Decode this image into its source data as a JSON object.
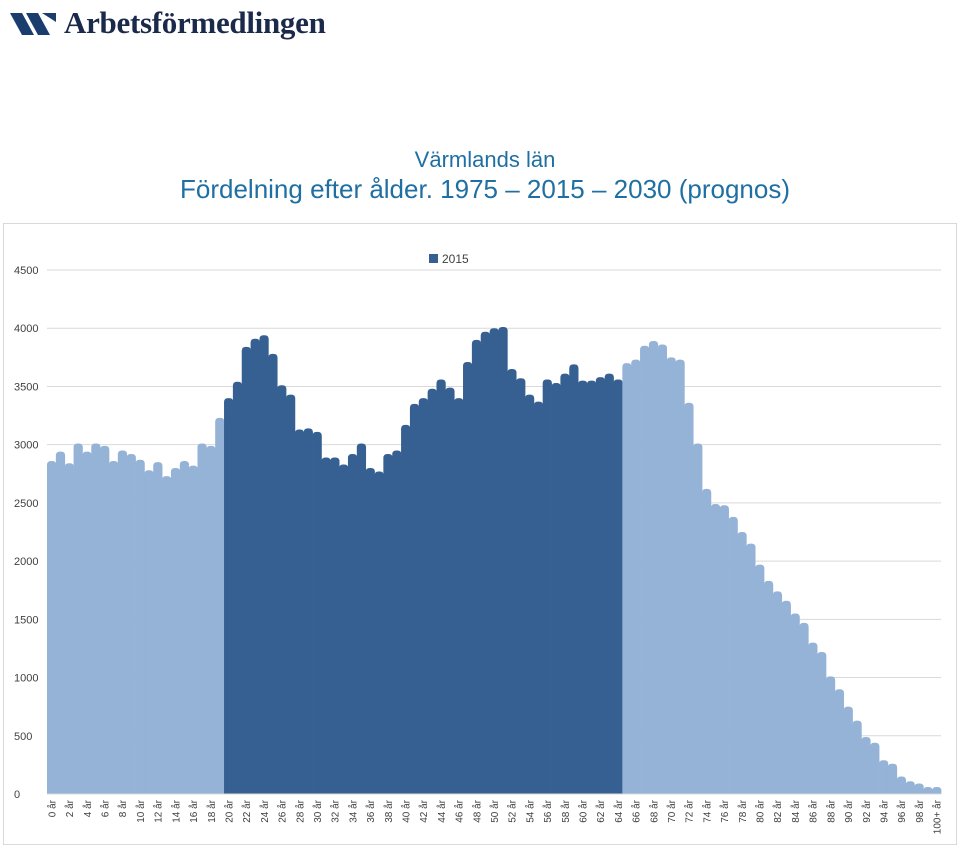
{
  "header": {
    "logo_text": "Arbetsförmedlingen",
    "title_line1": "Värmlands län",
    "title_line2": "Fördelning efter ålder. 1975 – 2015 – 2030 (prognos)"
  },
  "colors": {
    "title": "#1f6fa3",
    "bar_light": "#95b3d7",
    "bar_dark": "#376092",
    "gridline": "#d9d9d9",
    "axis_text": "#404040",
    "logo_mark": "#1b3d6e"
  },
  "chart_data": {
    "type": "bar",
    "title": "",
    "xlabel": "",
    "ylabel": "",
    "ylim": [
      0,
      4500
    ],
    "yticks": [
      0,
      500,
      1000,
      1500,
      2000,
      2500,
      3000,
      3500,
      4000,
      4500
    ],
    "grid": true,
    "legend_position": "top",
    "highlight_age_range": [
      20,
      64
    ],
    "categories": [
      "0 år",
      "1 år",
      "2 år",
      "3 år",
      "4 år",
      "5 år",
      "6 år",
      "7 år",
      "8 år",
      "9 år",
      "10 år",
      "11 år",
      "12 år",
      "13 år",
      "14 år",
      "15 år",
      "16 år",
      "17 år",
      "18 år",
      "19 år",
      "20 år",
      "21 år",
      "22 år",
      "23 år",
      "24 år",
      "25 år",
      "26 år",
      "27 år",
      "28 år",
      "29 år",
      "30 år",
      "31 år",
      "32 år",
      "33 år",
      "34 år",
      "35 år",
      "36 år",
      "37 år",
      "38 år",
      "39 år",
      "40 år",
      "41 år",
      "42 år",
      "43 år",
      "44 år",
      "45 år",
      "46 år",
      "47 år",
      "48 år",
      "49 år",
      "50 år",
      "51 år",
      "52 år",
      "53 år",
      "54 år",
      "55 år",
      "56 år",
      "57 år",
      "58 år",
      "59 år",
      "60 år",
      "61 år",
      "62 år",
      "63 år",
      "64 år",
      "65 år",
      "66 år",
      "67 år",
      "68 år",
      "69 år",
      "70 år",
      "71 år",
      "72 år",
      "73 år",
      "74 år",
      "75 år",
      "76 år",
      "77 år",
      "78 år",
      "79 år",
      "80 år",
      "81 år",
      "82 år",
      "83 år",
      "84 år",
      "85 år",
      "86 år",
      "87 år",
      "88 år",
      "89 år",
      "90 år",
      "91 år",
      "92 år",
      "93 år",
      "94 år",
      "95 år",
      "96 år",
      "97 år",
      "98 år",
      "99 år",
      "100+ år"
    ],
    "series": [
      {
        "name": "2015",
        "values": [
          2860,
          2940,
          2840,
          3010,
          2940,
          3010,
          2990,
          2860,
          2950,
          2920,
          2870,
          2780,
          2850,
          2730,
          2800,
          2860,
          2820,
          3010,
          2990,
          3230,
          3400,
          3540,
          3840,
          3910,
          3940,
          3780,
          3510,
          3430,
          3130,
          3140,
          3110,
          2890,
          2890,
          2830,
          2920,
          3010,
          2800,
          2770,
          2920,
          2950,
          3170,
          3350,
          3400,
          3480,
          3560,
          3490,
          3400,
          3710,
          3900,
          3970,
          4000,
          4010,
          3650,
          3570,
          3430,
          3370,
          3560,
          3530,
          3610,
          3690,
          3550,
          3550,
          3580,
          3610,
          3560,
          3700,
          3730,
          3850,
          3890,
          3860,
          3750,
          3730,
          3360,
          3010,
          2620,
          2490,
          2480,
          2380,
          2250,
          2150,
          1970,
          1830,
          1740,
          1660,
          1550,
          1470,
          1300,
          1220,
          1010,
          900,
          750,
          630,
          490,
          440,
          290,
          260,
          150,
          110,
          90,
          60,
          60
        ]
      }
    ]
  }
}
